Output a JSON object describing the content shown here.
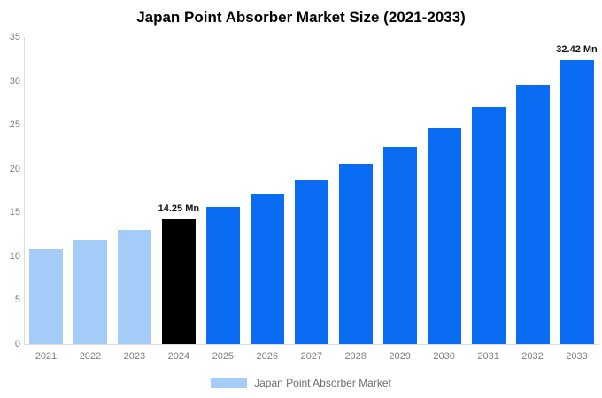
{
  "title": "Japan Point Absorber Market Size (2021-2033)",
  "legend": {
    "label": "Japan Point Absorber Market",
    "swatch_color": "#a4ccf8"
  },
  "colors": {
    "light_blue": "#a4ccf8",
    "bright_blue": "#0a6cf2",
    "highlight_black": "#000000",
    "axis_line": "#dcdcdc",
    "tick_text": "#7d7d7d",
    "legend_text": "#6e6e6e",
    "title_text": "#000000",
    "data_label_text": "#111111"
  },
  "chart_data": {
    "type": "bar",
    "title": "Japan Point Absorber Market Size (2021-2033)",
    "categories": [
      "2021",
      "2022",
      "2023",
      "2024",
      "2025",
      "2026",
      "2027",
      "2028",
      "2029",
      "2030",
      "2031",
      "2032",
      "2033"
    ],
    "values": [
      10.83,
      11.87,
      13.01,
      14.25,
      15.61,
      17.1,
      18.74,
      20.53,
      22.49,
      24.64,
      27.0,
      29.58,
      32.42
    ],
    "unit": "Mn",
    "xlabel": "",
    "ylabel": "",
    "ylim": [
      0,
      35
    ],
    "yticks": [
      0,
      5,
      10,
      15,
      20,
      25,
      30,
      35
    ],
    "grid": false,
    "legend_position": "bottom",
    "bar_colors": [
      "#a4ccf8",
      "#a4ccf8",
      "#a4ccf8",
      "#000000",
      "#0a6cf2",
      "#0a6cf2",
      "#0a6cf2",
      "#0a6cf2",
      "#0a6cf2",
      "#0a6cf2",
      "#0a6cf2",
      "#0a6cf2",
      "#0a6cf2"
    ],
    "annotations": [
      {
        "index": 3,
        "text": "14.25 Mn"
      },
      {
        "index": 12,
        "text": "32.42 Mn"
      }
    ]
  }
}
